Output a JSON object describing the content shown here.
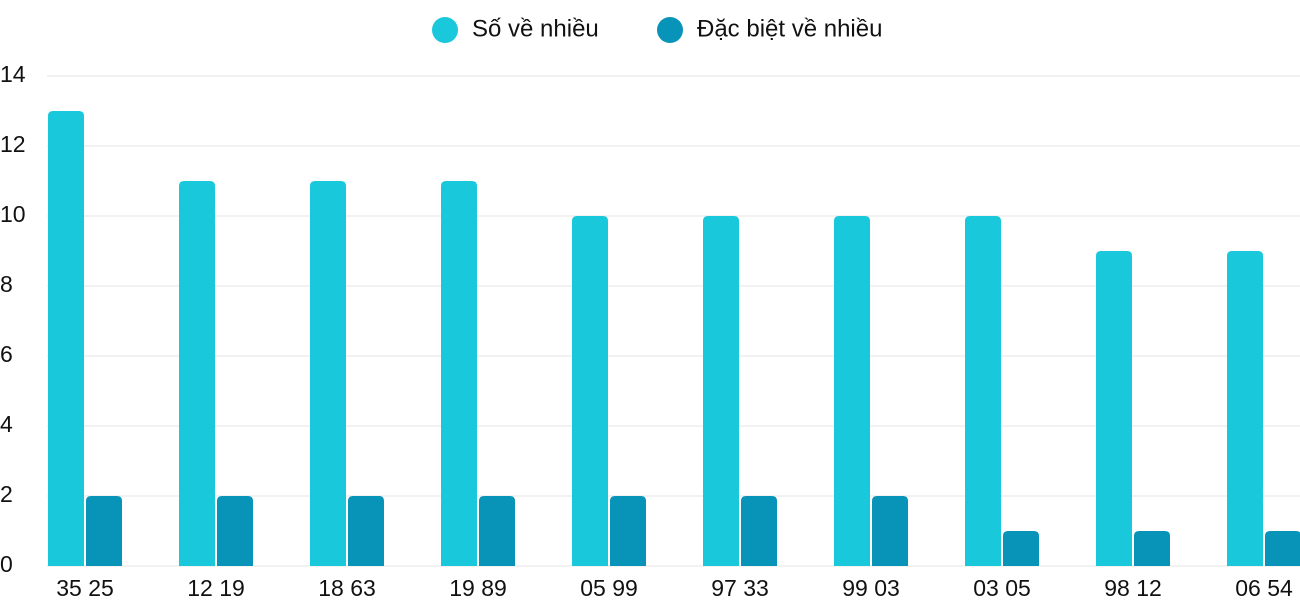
{
  "chart_data": {
    "type": "bar",
    "categories": [
      "35 25",
      "12 19",
      "18 63",
      "19 89",
      "05 99",
      "97 33",
      "99 03",
      "03 05",
      "98 12",
      "06 54"
    ],
    "series": [
      {
        "name": "Số về nhiều",
        "color": "#1ac8dc",
        "values": [
          13,
          11,
          11,
          11,
          10,
          10,
          10,
          10,
          9,
          9
        ]
      },
      {
        "name": "Đặc biệt về nhiều",
        "color": "#0893b9",
        "values": [
          2,
          2,
          2,
          2,
          2,
          2,
          2,
          1,
          1,
          1
        ]
      }
    ],
    "ylim": [
      0,
      14
    ],
    "yticks": [
      0,
      2,
      4,
      6,
      8,
      10,
      12,
      14
    ],
    "grid": true,
    "legend": "top"
  }
}
